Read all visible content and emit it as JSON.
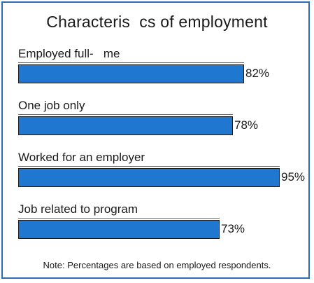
{
  "chart_data": {
    "type": "bar",
    "orientation": "horizontal",
    "title": "Characteris  cs of employment",
    "categories": [
      "Employed full-   me",
      "One job only",
      "Worked for an employer",
      "Job related to program"
    ],
    "values": [
      82,
      78,
      95,
      73
    ],
    "value_labels": [
      "82%",
      "78%",
      "95%",
      "73%"
    ],
    "bar_color": "#1f77d0",
    "border_color": "#2f6db3",
    "xlim": [
      0,
      100
    ],
    "grid": false,
    "legend": "none",
    "note": "Note: Percentages are based on employed respondents."
  }
}
